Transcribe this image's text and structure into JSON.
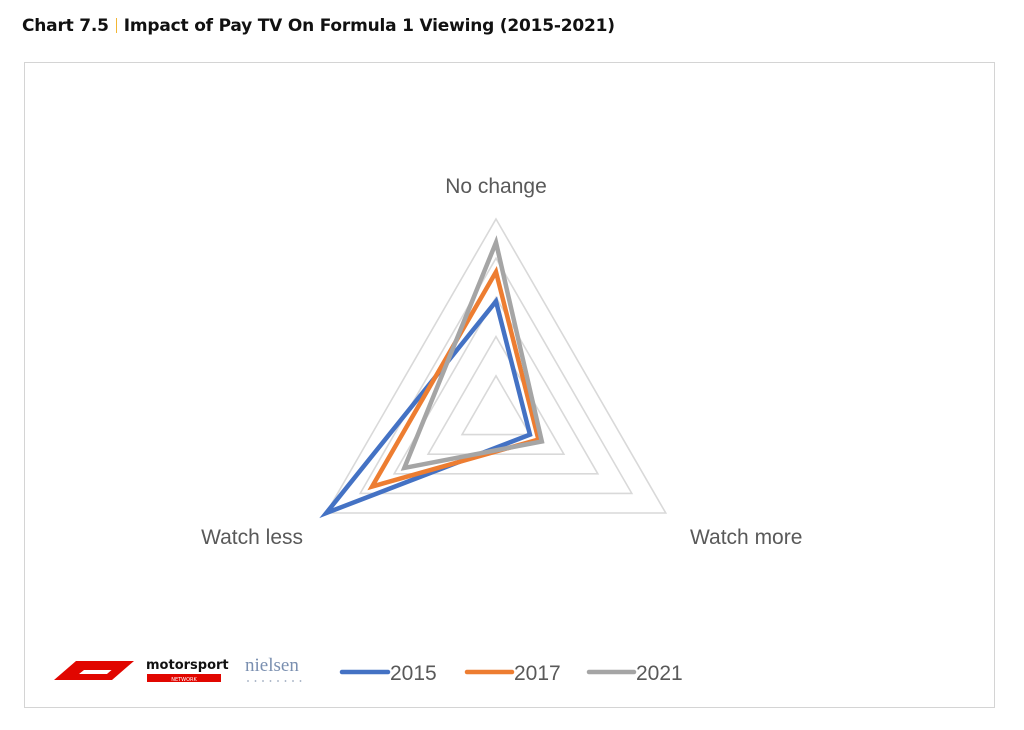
{
  "header": {
    "chart_number": "Chart 7.5",
    "title": "Impact of Pay TV On Formula 1 Viewing (2015-2021)"
  },
  "logos": {
    "f1": "F1",
    "motorsport": "motorsport",
    "motorsport_sub": "NETWORK",
    "nielsen": "nielsen"
  },
  "colors": {
    "grid": "#d9d9d9",
    "2015": "#4472c4",
    "2017": "#ed7d31",
    "2021": "#a5a5a5",
    "label": "#595959",
    "f1_red": "#e10600"
  },
  "chart_data": {
    "type": "radar",
    "axes": [
      "No change",
      "Watch more",
      "Watch less"
    ],
    "r_max": 100,
    "grid_levels": 5,
    "series": [
      {
        "name": "2015",
        "values": [
          58,
          20,
          100
        ]
      },
      {
        "name": "2017",
        "values": [
          73,
          25,
          73
        ]
      },
      {
        "name": "2021",
        "values": [
          88,
          27,
          54
        ]
      }
    ],
    "legend_position": "bottom"
  }
}
